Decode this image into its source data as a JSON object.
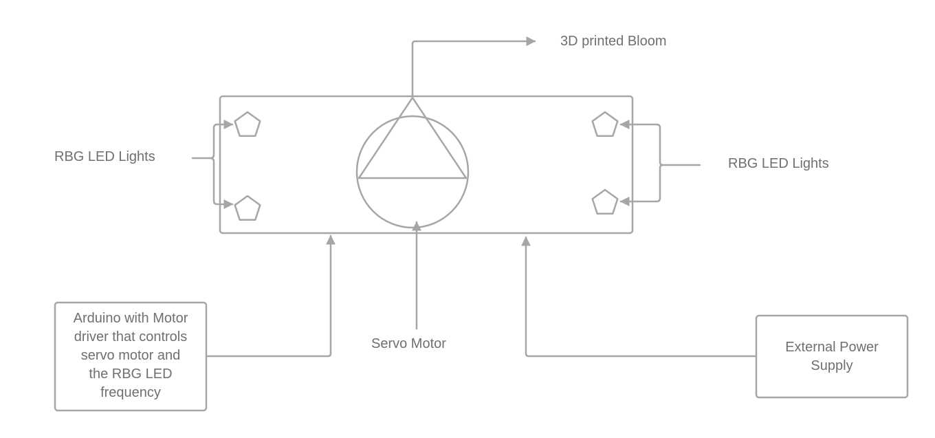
{
  "labels": {
    "bloom": "3D printed Bloom",
    "led_left": "RBG LED Lights",
    "led_right": "RBG LED Lights",
    "servo": "Servo Motor"
  },
  "arduino_box": {
    "lines": [
      "Arduino with Motor",
      "driver that controls",
      "servo motor and",
      "the RBG LED",
      "frequency"
    ]
  },
  "power_box": {
    "lines": [
      "External Power",
      "Supply"
    ]
  },
  "colors": {
    "stroke": "#a6a6a6",
    "text": "#6f6f6f",
    "background": "#ffffff"
  }
}
